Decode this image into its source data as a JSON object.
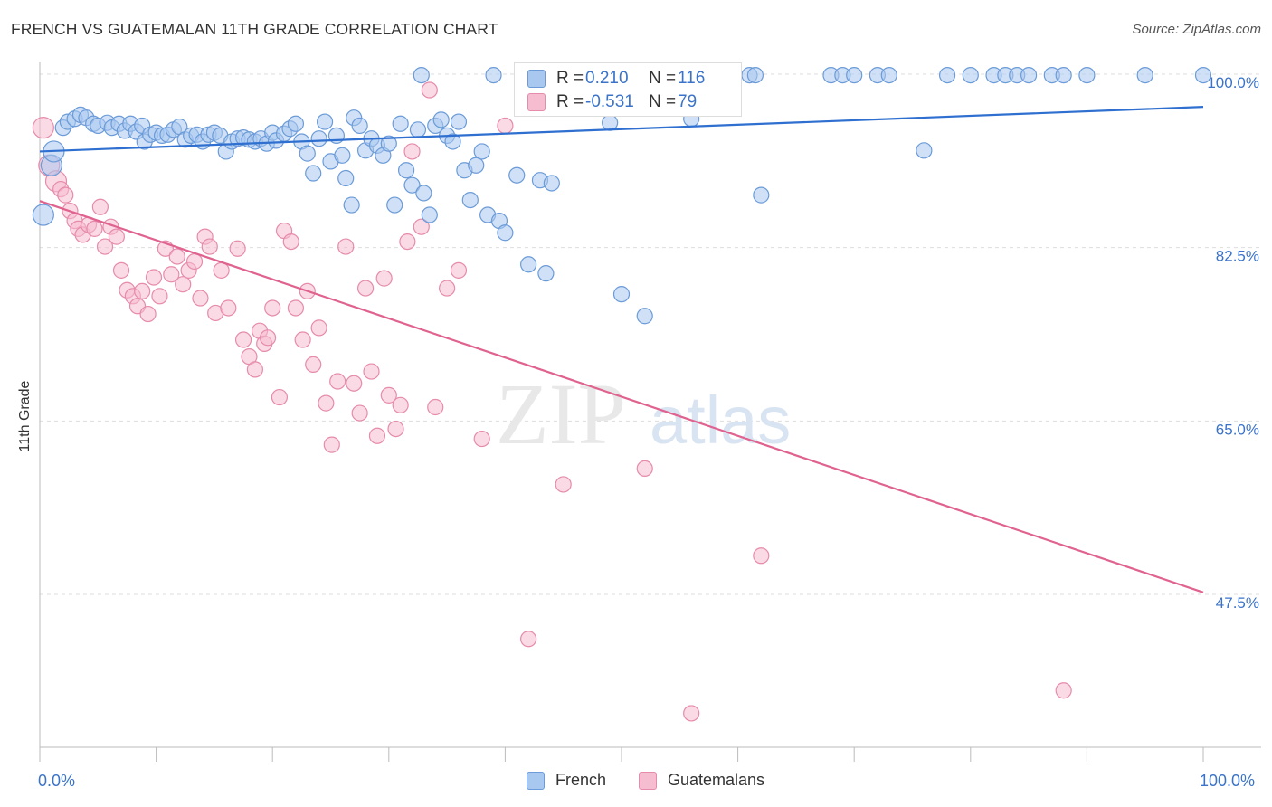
{
  "header": {
    "title": "FRENCH VS GUATEMALAN 11TH GRADE CORRELATION CHART",
    "source": "Source: ZipAtlas.com"
  },
  "watermark": {
    "part1": "ZIP",
    "part2": "atlas"
  },
  "legend_top": {
    "rows": [
      {
        "r_label": "R =",
        "r_value": "0.210",
        "n_label": "N =",
        "n_value": "116"
      },
      {
        "r_label": "R =",
        "r_value": "-0.531",
        "n_label": "N =",
        "n_value": "79"
      }
    ]
  },
  "legend_bottom": {
    "french": "French",
    "guatemalans": "Guatemalans"
  },
  "axis_labels": {
    "y_title": "11th Grade",
    "x_min": "0.0%",
    "x_max": "100.0%",
    "y_ticks": [
      "100.0%",
      "82.5%",
      "65.0%",
      "47.5%"
    ]
  },
  "colors": {
    "french_fill": "#a9c8f0",
    "french_stroke": "#6b9bd8",
    "french_line": "#2e6fd0",
    "guatemalan_fill": "#f6bcd0",
    "guatemalan_stroke": "#e68bab",
    "guatemalan_line": "#e0628f",
    "tick_label": "#3b73c8",
    "grid": "#dddddd"
  },
  "chart_data": {
    "type": "scatter",
    "title": "FRENCH VS GUATEMALAN 11TH GRADE CORRELATION CHART",
    "xlabel": "",
    "ylabel": "11th Grade",
    "xlim": [
      0,
      100
    ],
    "ylim": [
      29.5,
      102
    ],
    "y_ticks": [
      100,
      82.5,
      65,
      47.5
    ],
    "x_ticks": [
      0,
      100
    ],
    "grid": "horizontal dashed",
    "legend": "top-center",
    "series": [
      {
        "name": "French",
        "r": 0.21,
        "n": 116,
        "trend": {
          "x": [
            0,
            100
          ],
          "y": [
            92.2,
            96.7
          ]
        },
        "points": [
          [
            0.3,
            85.8
          ],
          [
            1.0,
            90.8
          ],
          [
            1.2,
            92.2
          ],
          [
            2.0,
            94.6
          ],
          [
            2.4,
            95.2
          ],
          [
            3.0,
            95.5
          ],
          [
            3.5,
            95.9
          ],
          [
            4.0,
            95.6
          ],
          [
            4.6,
            95.0
          ],
          [
            5.0,
            94.8
          ],
          [
            5.8,
            95.1
          ],
          [
            6.2,
            94.6
          ],
          [
            6.8,
            95.0
          ],
          [
            7.3,
            94.3
          ],
          [
            7.8,
            95.0
          ],
          [
            8.3,
            94.2
          ],
          [
            8.8,
            94.8
          ],
          [
            9.0,
            93.2
          ],
          [
            9.5,
            93.9
          ],
          [
            10.0,
            94.1
          ],
          [
            10.5,
            93.8
          ],
          [
            11.0,
            93.9
          ],
          [
            11.5,
            94.4
          ],
          [
            12.0,
            94.7
          ],
          [
            12.5,
            93.4
          ],
          [
            13.0,
            93.8
          ],
          [
            13.5,
            93.9
          ],
          [
            14.0,
            93.2
          ],
          [
            14.5,
            93.9
          ],
          [
            15.0,
            94.1
          ],
          [
            15.5,
            93.8
          ],
          [
            16.0,
            92.2
          ],
          [
            16.5,
            93.2
          ],
          [
            17.0,
            93.5
          ],
          [
            17.5,
            93.6
          ],
          [
            18.0,
            93.4
          ],
          [
            18.5,
            93.2
          ],
          [
            19.0,
            93.5
          ],
          [
            19.5,
            93.0
          ],
          [
            20.0,
            94.1
          ],
          [
            20.3,
            93.3
          ],
          [
            21.0,
            94.0
          ],
          [
            21.5,
            94.5
          ],
          [
            22.0,
            95.0
          ],
          [
            22.5,
            93.2
          ],
          [
            23.0,
            92.0
          ],
          [
            23.5,
            90.0
          ],
          [
            24.0,
            93.5
          ],
          [
            24.5,
            95.2
          ],
          [
            25.0,
            91.2
          ],
          [
            25.5,
            93.8
          ],
          [
            26.0,
            91.8
          ],
          [
            26.3,
            89.5
          ],
          [
            26.8,
            86.8
          ],
          [
            27.0,
            95.6
          ],
          [
            27.5,
            94.8
          ],
          [
            28.0,
            92.3
          ],
          [
            28.5,
            93.5
          ],
          [
            29.0,
            92.8
          ],
          [
            29.5,
            91.8
          ],
          [
            30.0,
            93.0
          ],
          [
            30.5,
            86.8
          ],
          [
            31.0,
            95.0
          ],
          [
            31.5,
            90.3
          ],
          [
            32.0,
            88.8
          ],
          [
            32.5,
            94.4
          ],
          [
            32.8,
            99.9
          ],
          [
            33.0,
            88.0
          ],
          [
            33.5,
            85.8
          ],
          [
            34.0,
            94.8
          ],
          [
            34.5,
            95.4
          ],
          [
            35.0,
            93.8
          ],
          [
            35.5,
            93.2
          ],
          [
            36.0,
            95.2
          ],
          [
            36.5,
            90.3
          ],
          [
            37.0,
            87.3
          ],
          [
            37.5,
            90.8
          ],
          [
            38.0,
            92.2
          ],
          [
            38.5,
            85.8
          ],
          [
            39.0,
            99.9
          ],
          [
            39.5,
            85.2
          ],
          [
            40.0,
            84.0
          ],
          [
            41.0,
            89.8
          ],
          [
            42.0,
            80.8
          ],
          [
            43.0,
            89.3
          ],
          [
            43.5,
            79.9
          ],
          [
            44.0,
            89.0
          ],
          [
            46.0,
            99.9
          ],
          [
            48.0,
            99.9
          ],
          [
            49.0,
            95.1
          ],
          [
            50.0,
            77.8
          ],
          [
            51.0,
            99.9
          ],
          [
            52.0,
            75.6
          ],
          [
            55.0,
            99.9
          ],
          [
            56.0,
            95.5
          ],
          [
            58.0,
            99.9
          ],
          [
            61.0,
            99.9
          ],
          [
            61.5,
            99.9
          ],
          [
            62.0,
            87.8
          ],
          [
            68.0,
            99.9
          ],
          [
            69.0,
            99.9
          ],
          [
            70.0,
            99.9
          ],
          [
            72.0,
            99.9
          ],
          [
            73.0,
            99.9
          ],
          [
            76.0,
            92.3
          ],
          [
            78.0,
            99.9
          ],
          [
            80.0,
            99.9
          ],
          [
            82.0,
            99.9
          ],
          [
            83.0,
            99.9
          ],
          [
            84.0,
            99.9
          ],
          [
            85.0,
            99.9
          ],
          [
            87.0,
            99.9
          ],
          [
            88.0,
            99.9
          ],
          [
            90.0,
            99.9
          ],
          [
            95.0,
            99.9
          ],
          [
            100.0,
            99.9
          ]
        ]
      },
      {
        "name": "Guatemalans",
        "r": -0.531,
        "n": 79,
        "trend": {
          "x": [
            0,
            100
          ],
          "y": [
            87.2,
            47.7
          ]
        },
        "points": [
          [
            0.3,
            94.6
          ],
          [
            0.8,
            90.8
          ],
          [
            1.4,
            89.2
          ],
          [
            1.8,
            88.4
          ],
          [
            2.2,
            87.8
          ],
          [
            2.6,
            86.2
          ],
          [
            3.0,
            85.2
          ],
          [
            3.3,
            84.4
          ],
          [
            3.7,
            83.8
          ],
          [
            4.2,
            84.8
          ],
          [
            4.7,
            84.4
          ],
          [
            5.2,
            86.6
          ],
          [
            5.6,
            82.6
          ],
          [
            6.1,
            84.6
          ],
          [
            6.6,
            83.6
          ],
          [
            7.0,
            80.2
          ],
          [
            7.5,
            78.2
          ],
          [
            8.0,
            77.6
          ],
          [
            8.4,
            76.6
          ],
          [
            8.8,
            78.1
          ],
          [
            9.3,
            75.8
          ],
          [
            9.8,
            79.5
          ],
          [
            10.3,
            77.6
          ],
          [
            10.8,
            82.4
          ],
          [
            11.3,
            79.8
          ],
          [
            11.8,
            81.6
          ],
          [
            12.3,
            78.8
          ],
          [
            12.8,
            80.2
          ],
          [
            13.3,
            81.1
          ],
          [
            13.8,
            77.4
          ],
          [
            14.2,
            83.6
          ],
          [
            14.6,
            82.6
          ],
          [
            15.1,
            75.9
          ],
          [
            15.6,
            80.2
          ],
          [
            16.2,
            76.4
          ],
          [
            17.0,
            82.4
          ],
          [
            17.5,
            73.2
          ],
          [
            18.0,
            71.5
          ],
          [
            18.5,
            70.2
          ],
          [
            18.9,
            74.1
          ],
          [
            19.3,
            72.8
          ],
          [
            19.6,
            73.4
          ],
          [
            20.0,
            76.4
          ],
          [
            20.6,
            67.4
          ],
          [
            21.0,
            84.2
          ],
          [
            21.6,
            83.1
          ],
          [
            22.0,
            76.4
          ],
          [
            22.6,
            73.2
          ],
          [
            23.0,
            78.1
          ],
          [
            23.5,
            70.7
          ],
          [
            24.0,
            74.4
          ],
          [
            24.6,
            66.8
          ],
          [
            25.1,
            62.6
          ],
          [
            25.6,
            69.0
          ],
          [
            26.3,
            82.6
          ],
          [
            27.0,
            68.8
          ],
          [
            27.5,
            65.8
          ],
          [
            28.0,
            78.4
          ],
          [
            28.5,
            70.0
          ],
          [
            29.0,
            63.5
          ],
          [
            29.6,
            79.4
          ],
          [
            30.0,
            67.6
          ],
          [
            30.6,
            64.2
          ],
          [
            31.0,
            66.6
          ],
          [
            31.6,
            83.1
          ],
          [
            32.0,
            92.2
          ],
          [
            32.8,
            84.6
          ],
          [
            33.5,
            98.4
          ],
          [
            34.0,
            66.4
          ],
          [
            35.0,
            78.4
          ],
          [
            36.0,
            80.2
          ],
          [
            38.0,
            63.2
          ],
          [
            40.0,
            94.8
          ],
          [
            42.0,
            43.0
          ],
          [
            45.0,
            58.6
          ],
          [
            52.0,
            60.2
          ],
          [
            56.0,
            35.5
          ],
          [
            62.0,
            51.4
          ],
          [
            88.0,
            37.8
          ]
        ]
      }
    ]
  }
}
